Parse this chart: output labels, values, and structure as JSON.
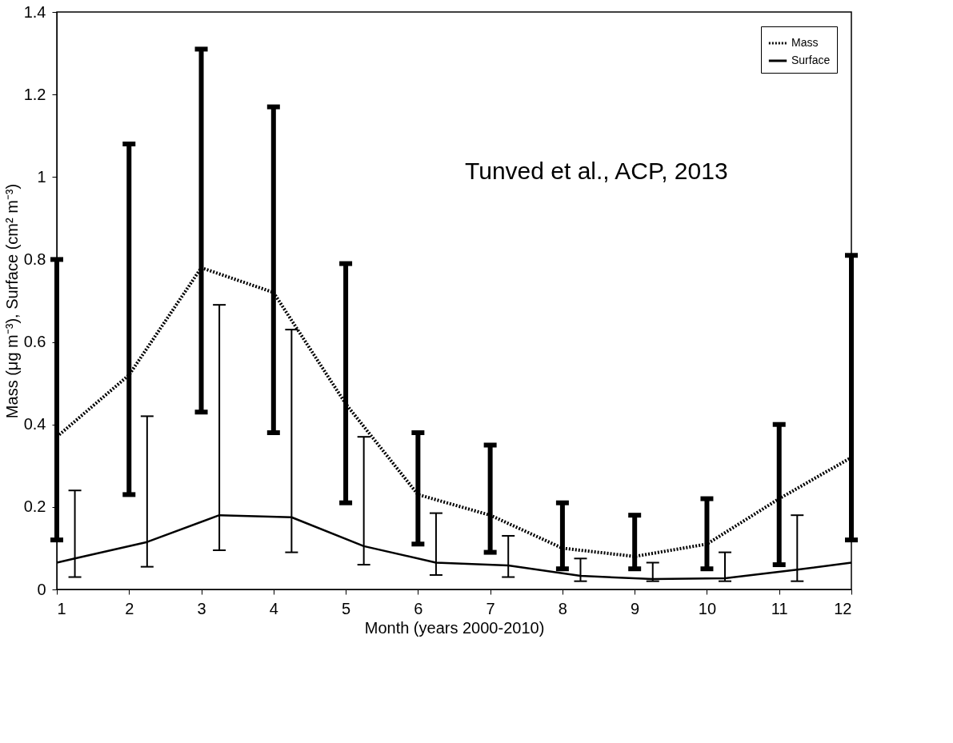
{
  "chart_data": {
    "type": "line",
    "xlabel": "Month (years 2000-2010)",
    "ylabel": "Mass (μg m⁻³), Surface (cm² m⁻³)",
    "x": [
      1,
      2,
      3,
      4,
      5,
      6,
      7,
      8,
      9,
      10,
      11,
      12
    ],
    "series": [
      {
        "name": "Mass",
        "color": "#000000",
        "line_style": "dotted",
        "values": [
          0.37,
          0.52,
          0.78,
          0.72,
          0.45,
          0.23,
          0.18,
          0.1,
          0.08,
          0.11,
          0.22,
          0.32
        ],
        "errors": [
          [
            0.12,
            0.8
          ],
          [
            0.23,
            1.08
          ],
          [
            0.43,
            1.31
          ],
          [
            0.38,
            1.17
          ],
          [
            0.21,
            0.79
          ],
          [
            0.11,
            0.38
          ],
          [
            0.09,
            0.35
          ],
          [
            0.05,
            0.21
          ],
          [
            0.05,
            0.18
          ],
          [
            0.05,
            0.22
          ],
          [
            0.06,
            0.4
          ],
          [
            0.12,
            0.81
          ]
        ]
      },
      {
        "name": "Surface",
        "color": "#000000",
        "line_style": "solid",
        "x": [
          1,
          1.25,
          2.25,
          3.25,
          4.25,
          5.25,
          6.25,
          7.25,
          8.25,
          9.25,
          10.25,
          11.25,
          12
        ],
        "values": [
          0.065,
          0.075,
          0.115,
          0.18,
          0.175,
          0.105,
          0.065,
          0.058,
          0.033,
          0.025,
          0.027,
          0.048,
          0.065
        ],
        "errors": [
          null,
          [
            0.03,
            0.24
          ],
          [
            0.055,
            0.42
          ],
          [
            0.095,
            0.69
          ],
          [
            0.09,
            0.63
          ],
          [
            0.06,
            0.37
          ],
          [
            0.035,
            0.185
          ],
          [
            0.03,
            0.13
          ],
          [
            0.02,
            0.075
          ],
          [
            0.02,
            0.065
          ],
          [
            0.02,
            0.09
          ],
          [
            0.02,
            0.18
          ],
          null
        ]
      }
    ],
    "xlim": [
      1,
      12
    ],
    "xticks": [
      1,
      2,
      3,
      4,
      5,
      6,
      7,
      8,
      9,
      10,
      11,
      12
    ],
    "ylim": [
      0,
      1.4
    ],
    "yticks": [
      0,
      0.2,
      0.4,
      0.6,
      0.8,
      1,
      1.2,
      1.4
    ],
    "grid": false,
    "legend": "top right",
    "marker": "none",
    "annotations": [
      "Tunved et al., ACP, 2013"
    ]
  }
}
